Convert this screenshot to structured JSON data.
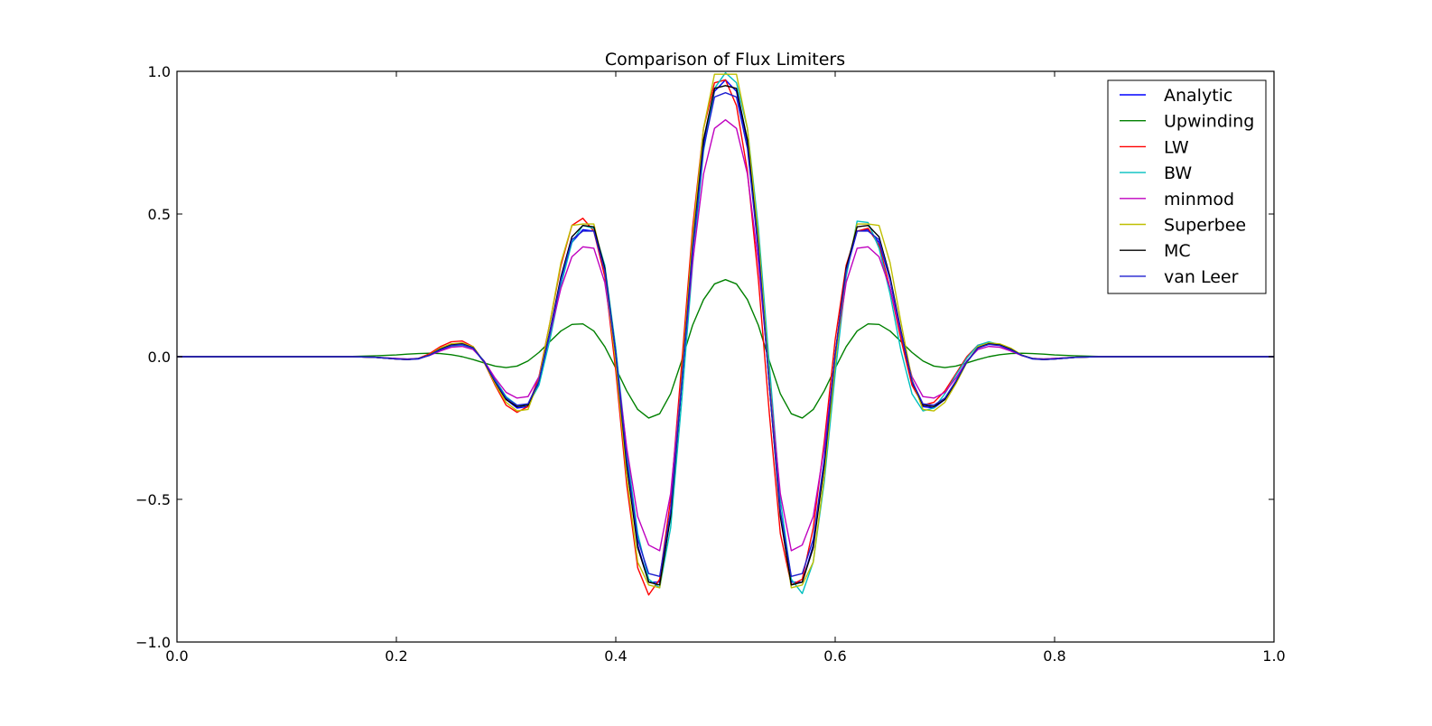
{
  "chart_data": {
    "type": "line",
    "title": "Comparison of Flux Limiters",
    "xlabel": "",
    "ylabel": "",
    "xlim": [
      0.0,
      1.0
    ],
    "ylim": [
      -1.0,
      1.0
    ],
    "xticks": [
      0.0,
      0.2,
      0.4,
      0.6,
      0.8,
      1.0
    ],
    "xtick_labels": [
      "0.0",
      "0.2",
      "0.4",
      "0.6",
      "0.8",
      "1.0"
    ],
    "yticks": [
      -1.0,
      -0.5,
      0.0,
      0.5,
      1.0
    ],
    "ytick_labels": [
      "−1.0",
      "−0.5",
      "0.0",
      "0.5",
      "1.0"
    ],
    "grid": false,
    "legend_position": "top-right",
    "x": [
      0.0,
      0.02,
      0.04,
      0.06,
      0.08,
      0.1,
      0.12,
      0.14,
      0.16,
      0.18,
      0.2,
      0.21,
      0.22,
      0.23,
      0.24,
      0.25,
      0.26,
      0.27,
      0.28,
      0.29,
      0.3,
      0.31,
      0.32,
      0.33,
      0.34,
      0.35,
      0.36,
      0.37,
      0.38,
      0.39,
      0.4,
      0.41,
      0.42,
      0.43,
      0.44,
      0.45,
      0.46,
      0.47,
      0.48,
      0.49,
      0.5,
      0.51,
      0.52,
      0.53,
      0.54,
      0.55,
      0.56,
      0.57,
      0.58,
      0.59,
      0.6,
      0.61,
      0.62,
      0.63,
      0.64,
      0.65,
      0.66,
      0.67,
      0.68,
      0.69,
      0.7,
      0.71,
      0.72,
      0.73,
      0.74,
      0.75,
      0.76,
      0.77,
      0.78,
      0.79,
      0.8,
      0.82,
      0.84,
      0.86,
      0.88,
      0.9,
      0.92,
      0.94,
      0.96,
      0.98,
      1.0
    ],
    "series": [
      {
        "name": "Analytic",
        "color": "#0000ff",
        "values": [
          0,
          0,
          0,
          0,
          0,
          0,
          0,
          0,
          0,
          -0.002,
          -0.008,
          -0.01,
          -0.008,
          0.005,
          0.025,
          0.04,
          0.045,
          0.03,
          -0.02,
          -0.09,
          -0.15,
          -0.18,
          -0.175,
          -0.09,
          0.08,
          0.27,
          0.4,
          0.445,
          0.44,
          0.3,
          0.0,
          -0.38,
          -0.66,
          -0.79,
          -0.79,
          -0.55,
          -0.1,
          0.38,
          0.75,
          0.93,
          0.97,
          0.93,
          0.75,
          0.38,
          -0.1,
          -0.55,
          -0.79,
          -0.79,
          -0.66,
          -0.38,
          0.0,
          0.3,
          0.44,
          0.445,
          0.4,
          0.27,
          0.08,
          -0.09,
          -0.175,
          -0.18,
          -0.15,
          -0.09,
          -0.02,
          0.03,
          0.045,
          0.04,
          0.025,
          0.005,
          -0.008,
          -0.01,
          -0.008,
          -0.002,
          0,
          0,
          0,
          0,
          0,
          0,
          0,
          0,
          0
        ]
      },
      {
        "name": "Upwinding",
        "color": "#008000",
        "values": [
          0,
          0,
          0,
          0,
          0,
          0,
          0,
          0,
          0.001,
          0.003,
          0.006,
          0.009,
          0.011,
          0.012,
          0.011,
          0.007,
          0.0,
          -0.01,
          -0.022,
          -0.033,
          -0.038,
          -0.033,
          -0.015,
          0.015,
          0.053,
          0.09,
          0.113,
          0.115,
          0.09,
          0.035,
          -0.04,
          -0.12,
          -0.185,
          -0.215,
          -0.2,
          -0.13,
          -0.015,
          0.11,
          0.2,
          0.255,
          0.27,
          0.255,
          0.2,
          0.11,
          -0.015,
          -0.13,
          -0.2,
          -0.215,
          -0.185,
          -0.12,
          -0.04,
          0.035,
          0.09,
          0.115,
          0.113,
          0.09,
          0.053,
          0.015,
          -0.015,
          -0.033,
          -0.038,
          -0.033,
          -0.022,
          -0.01,
          0.0,
          0.007,
          0.011,
          0.012,
          0.011,
          0.009,
          0.006,
          0.003,
          0.001,
          0,
          0,
          0,
          0,
          0,
          0,
          0,
          0
        ]
      },
      {
        "name": "LW",
        "color": "#ff0000",
        "values": [
          0,
          0,
          0,
          0,
          0,
          0,
          0,
          0,
          0,
          -0.002,
          -0.008,
          -0.01,
          -0.006,
          0.01,
          0.035,
          0.052,
          0.055,
          0.035,
          -0.02,
          -0.1,
          -0.17,
          -0.195,
          -0.175,
          -0.07,
          0.12,
          0.32,
          0.46,
          0.485,
          0.44,
          0.28,
          -0.05,
          -0.45,
          -0.74,
          -0.835,
          -0.78,
          -0.5,
          -0.03,
          0.45,
          0.8,
          0.96,
          0.97,
          0.88,
          0.65,
          0.27,
          -0.2,
          -0.62,
          -0.8,
          -0.78,
          -0.6,
          -0.3,
          0.06,
          0.32,
          0.44,
          0.45,
          0.39,
          0.24,
          0.06,
          -0.1,
          -0.17,
          -0.16,
          -0.12,
          -0.06,
          0.0,
          0.04,
          0.05,
          0.04,
          0.022,
          0.004,
          -0.006,
          -0.008,
          -0.006,
          -0.002,
          0,
          0,
          0,
          0,
          0,
          0,
          0,
          0,
          0
        ]
      },
      {
        "name": "BW",
        "color": "#00bfbf",
        "values": [
          0,
          0,
          0,
          0,
          0,
          0,
          0,
          0,
          0,
          -0.002,
          -0.006,
          -0.008,
          -0.006,
          0.004,
          0.022,
          0.036,
          0.04,
          0.028,
          -0.015,
          -0.08,
          -0.14,
          -0.17,
          -0.17,
          -0.1,
          0.06,
          0.25,
          0.4,
          0.46,
          0.45,
          0.32,
          0.03,
          -0.33,
          -0.62,
          -0.78,
          -0.81,
          -0.6,
          -0.16,
          0.32,
          0.72,
          0.94,
          0.995,
          0.96,
          0.8,
          0.45,
          -0.03,
          -0.5,
          -0.78,
          -0.83,
          -0.72,
          -0.44,
          -0.06,
          0.28,
          0.475,
          0.47,
          0.38,
          0.22,
          0.02,
          -0.13,
          -0.19,
          -0.18,
          -0.13,
          -0.065,
          -0.005,
          0.04,
          0.052,
          0.042,
          0.024,
          0.005,
          -0.006,
          -0.008,
          -0.006,
          -0.002,
          0,
          0,
          0,
          0,
          0,
          0,
          0,
          0,
          0
        ]
      },
      {
        "name": "minmod",
        "color": "#bf00bf",
        "values": [
          0,
          0,
          0,
          0,
          0,
          0,
          0,
          0,
          0,
          -0.002,
          -0.006,
          -0.008,
          -0.006,
          0.004,
          0.02,
          0.033,
          0.036,
          0.025,
          -0.015,
          -0.075,
          -0.125,
          -0.145,
          -0.14,
          -0.07,
          0.08,
          0.24,
          0.35,
          0.385,
          0.38,
          0.26,
          0.0,
          -0.32,
          -0.56,
          -0.66,
          -0.68,
          -0.48,
          -0.08,
          0.33,
          0.64,
          0.8,
          0.83,
          0.8,
          0.64,
          0.33,
          -0.08,
          -0.48,
          -0.68,
          -0.66,
          -0.56,
          -0.32,
          0.0,
          0.26,
          0.38,
          0.385,
          0.35,
          0.24,
          0.08,
          -0.07,
          -0.14,
          -0.145,
          -0.125,
          -0.075,
          -0.015,
          0.025,
          0.036,
          0.033,
          0.02,
          0.004,
          -0.006,
          -0.008,
          -0.006,
          -0.002,
          0,
          0,
          0,
          0,
          0,
          0,
          0,
          0,
          0
        ]
      },
      {
        "name": "Superbee",
        "color": "#bfbf00",
        "values": [
          0,
          0,
          0,
          0,
          0,
          0,
          0,
          0,
          0,
          -0.002,
          -0.008,
          -0.01,
          -0.007,
          0.006,
          0.03,
          0.045,
          0.048,
          0.035,
          -0.02,
          -0.095,
          -0.16,
          -0.19,
          -0.185,
          -0.08,
          0.12,
          0.33,
          0.46,
          0.465,
          0.465,
          0.3,
          -0.02,
          -0.42,
          -0.72,
          -0.8,
          -0.81,
          -0.55,
          -0.08,
          0.42,
          0.8,
          0.99,
          0.99,
          0.99,
          0.8,
          0.42,
          -0.08,
          -0.55,
          -0.81,
          -0.8,
          -0.72,
          -0.42,
          -0.02,
          0.3,
          0.465,
          0.465,
          0.46,
          0.33,
          0.12,
          -0.08,
          -0.185,
          -0.19,
          -0.16,
          -0.095,
          -0.02,
          0.035,
          0.048,
          0.045,
          0.03,
          0.006,
          -0.007,
          -0.01,
          -0.008,
          -0.002,
          0,
          0,
          0,
          0,
          0,
          0,
          0,
          0,
          0
        ]
      },
      {
        "name": "MC",
        "color": "#000000",
        "values": [
          0,
          0,
          0,
          0,
          0,
          0,
          0,
          0,
          0,
          -0.002,
          -0.008,
          -0.01,
          -0.007,
          0.005,
          0.026,
          0.041,
          0.045,
          0.031,
          -0.018,
          -0.088,
          -0.15,
          -0.175,
          -0.17,
          -0.085,
          0.09,
          0.28,
          0.42,
          0.46,
          0.455,
          0.31,
          0.01,
          -0.38,
          -0.67,
          -0.79,
          -0.8,
          -0.56,
          -0.1,
          0.38,
          0.76,
          0.94,
          0.95,
          0.94,
          0.76,
          0.38,
          -0.1,
          -0.56,
          -0.8,
          -0.79,
          -0.67,
          -0.38,
          0.01,
          0.31,
          0.455,
          0.46,
          0.42,
          0.28,
          0.09,
          -0.085,
          -0.17,
          -0.175,
          -0.15,
          -0.088,
          -0.018,
          0.031,
          0.045,
          0.041,
          0.026,
          0.005,
          -0.007,
          -0.01,
          -0.008,
          -0.002,
          0,
          0,
          0,
          0,
          0,
          0,
          0,
          0,
          0
        ]
      },
      {
        "name": "van Leer",
        "color": "#1f1fcf",
        "values": [
          0,
          0,
          0,
          0,
          0,
          0,
          0,
          0,
          0,
          -0.002,
          -0.008,
          -0.01,
          -0.007,
          0.005,
          0.024,
          0.039,
          0.043,
          0.03,
          -0.018,
          -0.085,
          -0.145,
          -0.17,
          -0.165,
          -0.085,
          0.085,
          0.27,
          0.41,
          0.44,
          0.44,
          0.3,
          0.01,
          -0.36,
          -0.64,
          -0.76,
          -0.77,
          -0.54,
          -0.1,
          0.37,
          0.73,
          0.91,
          0.925,
          0.91,
          0.73,
          0.37,
          -0.1,
          -0.54,
          -0.77,
          -0.76,
          -0.64,
          -0.36,
          0.01,
          0.3,
          0.44,
          0.44,
          0.41,
          0.27,
          0.085,
          -0.085,
          -0.165,
          -0.17,
          -0.145,
          -0.085,
          -0.018,
          0.03,
          0.043,
          0.039,
          0.024,
          0.005,
          -0.007,
          -0.01,
          -0.008,
          -0.002,
          0,
          0,
          0,
          0,
          0,
          0,
          0,
          0,
          0
        ]
      }
    ]
  }
}
